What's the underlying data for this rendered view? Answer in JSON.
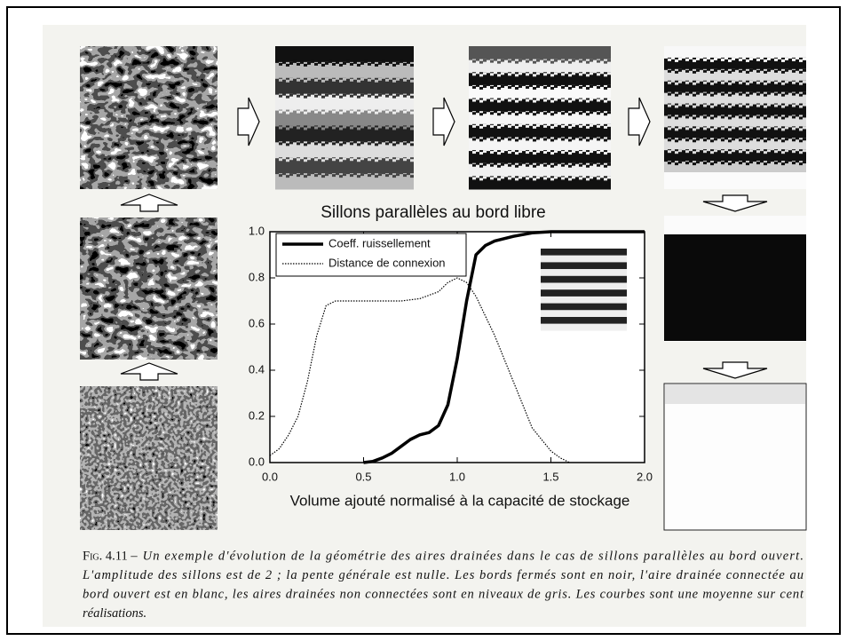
{
  "chart_data": {
    "type": "line",
    "title": "Sillons parallèles au bord libre",
    "x_label": "Volume ajouté normalisé à la capacité de stockage",
    "xlim": [
      0,
      2
    ],
    "ylim": [
      0,
      1
    ],
    "xticks": [
      {
        "value": 0,
        "label": "0.0"
      },
      {
        "value": 0.5,
        "label": "0.5"
      },
      {
        "value": 1,
        "label": "1.0"
      },
      {
        "value": 1.5,
        "label": "1.5"
      },
      {
        "value": 2,
        "label": "2.0"
      }
    ],
    "yticks": [
      {
        "value": 0,
        "label": "0.0"
      },
      {
        "value": 0.2,
        "label": "0.2"
      },
      {
        "value": 0.4,
        "label": "0.4"
      },
      {
        "value": 0.6,
        "label": "0.6"
      },
      {
        "value": 0.8,
        "label": "0.8"
      },
      {
        "value": 1,
        "label": "1.0"
      }
    ],
    "legend": "upper left",
    "series": [
      {
        "name": "Coeff. ruissellement",
        "color": "#000000",
        "style": "solid",
        "x": [
          0.5,
          0.55,
          0.6,
          0.65,
          0.7,
          0.75,
          0.8,
          0.85,
          0.9,
          0.95,
          1.0,
          1.05,
          1.1,
          1.15,
          1.2,
          1.3,
          1.4,
          1.5,
          2.0
        ],
        "values": [
          0,
          0.005,
          0.02,
          0.04,
          0.07,
          0.1,
          0.12,
          0.13,
          0.16,
          0.25,
          0.45,
          0.7,
          0.9,
          0.94,
          0.96,
          0.98,
          0.995,
          1,
          1
        ]
      },
      {
        "name": "Distance de connexion",
        "color": "#000000",
        "style": "dotted",
        "x": [
          0,
          0.05,
          0.1,
          0.15,
          0.2,
          0.25,
          0.3,
          0.35,
          0.5,
          0.7,
          0.8,
          0.9,
          0.95,
          1.0,
          1.05,
          1.1,
          1.2,
          1.3,
          1.4,
          1.5,
          1.55,
          1.6
        ],
        "values": [
          0.03,
          0.06,
          0.12,
          0.2,
          0.35,
          0.55,
          0.68,
          0.7,
          0.7,
          0.7,
          0.71,
          0.74,
          0.78,
          0.8,
          0.78,
          0.72,
          0.55,
          0.35,
          0.15,
          0.05,
          0.02,
          0
        ]
      }
    ]
  },
  "caption": {
    "label": "Fig. 4.11 –",
    "lines": [
      "Un exemple d'évolution de la géométrie des aires drainées dans le cas de sillons parallèles au bord ouvert.",
      "L'amplitude des sillons est de 2 ; la pente générale est nulle. Les bords fermés sont en noir, l'aire drainée connectée au",
      "bord ouvert est en blanc, les aires drainées non connectées sont en niveaux de gris. Les courbes sont une moyenne sur cent",
      "réalisations."
    ]
  }
}
